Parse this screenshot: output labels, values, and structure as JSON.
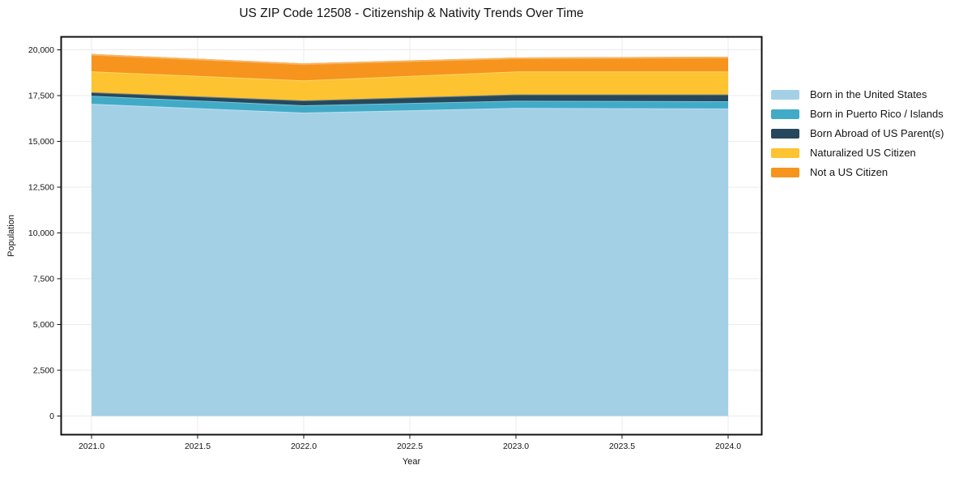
{
  "chart_data": {
    "type": "area",
    "stacked": true,
    "title": "US ZIP Code 12508 - Citizenship & Nativity Trends Over Time",
    "xlabel": "Year",
    "ylabel": "Population",
    "x": [
      2021,
      2022,
      2023,
      2024
    ],
    "series": [
      {
        "name": "Born in the United States",
        "color": "#A4D0E6",
        "values": [
          17050,
          16570,
          16825,
          16795
        ]
      },
      {
        "name": "Born in Puerto Rico / Islands",
        "color": "#41ABC7",
        "values": [
          440,
          400,
          395,
          395
        ]
      },
      {
        "name": "Born Abroad of US Parent(s)",
        "color": "#27485C",
        "values": [
          190,
          265,
          340,
          370
        ]
      },
      {
        "name": "Naturalized US Citizen",
        "color": "#FDC330",
        "values": [
          1140,
          1095,
          1255,
          1255
        ]
      },
      {
        "name": "Not a US Citizen",
        "color": "#F6941E",
        "values": [
          955,
          930,
          765,
          810
        ]
      }
    ],
    "totals": [
      19775,
      19260,
      19580,
      19625
    ],
    "ylim": [
      0,
      20000
    ],
    "xlim": [
      2021,
      2024
    ],
    "grid": true,
    "legend_position": "right-outside",
    "xticks": {
      "values": [
        2021.0,
        2021.5,
        2022.0,
        2022.5,
        2023.0,
        2023.5,
        2024.0
      ],
      "labels": [
        "2021.0",
        "2021.5",
        "2022.0",
        "2022.5",
        "2023.0",
        "2023.5",
        "2024.0"
      ]
    },
    "yticks": {
      "values": [
        0,
        2500,
        5000,
        7500,
        10000,
        12500,
        15000,
        17500,
        20000
      ],
      "labels": [
        "0",
        "2,500",
        "5,000",
        "7,500",
        "10,000",
        "12,500",
        "15,000",
        "17,500",
        "20,000"
      ]
    },
    "colors": {
      "background": "#ffffff",
      "spine": "#111111",
      "grid": "#ebebeb",
      "text": "#141414"
    }
  }
}
